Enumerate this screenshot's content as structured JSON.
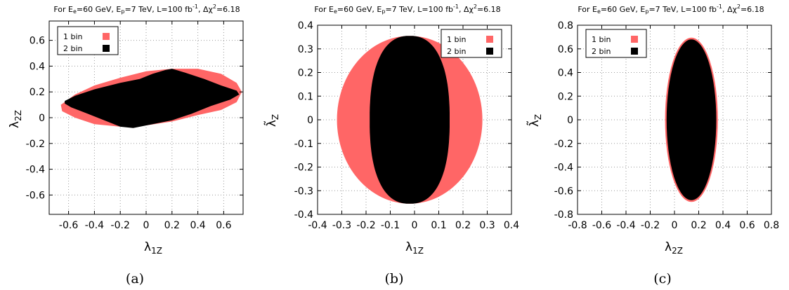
{
  "chart_data": [
    {
      "type": "area",
      "title": "For Eₑ=60 GeV, Eₚ=7 TeV, L=100 fb⁻¹, Δχ²=6.18",
      "xlabel": "λ₁₂",
      "ylabel": "λ₂₂",
      "caption": "(a)",
      "xlim": [
        -0.75,
        0.75
      ],
      "ylim": [
        -0.75,
        0.75
      ],
      "xticks": [
        -0.6,
        -0.4,
        -0.2,
        0,
        0.2,
        0.4,
        0.6
      ],
      "yticks": [
        -0.6,
        -0.4,
        -0.2,
        0,
        0.2,
        0.4,
        0.6
      ],
      "grid": true,
      "legend_position": "top-left",
      "series": [
        {
          "name": "1 bin",
          "color": "#ff6666",
          "points": [
            [
              -0.66,
              0.1
            ],
            [
              -0.55,
              0.18
            ],
            [
              -0.4,
              0.25
            ],
            [
              -0.2,
              0.31
            ],
            [
              0.0,
              0.36
            ],
            [
              0.2,
              0.38
            ],
            [
              0.4,
              0.38
            ],
            [
              0.58,
              0.34
            ],
            [
              0.7,
              0.27
            ],
            [
              0.74,
              0.2
            ],
            [
              0.7,
              0.12
            ],
            [
              0.58,
              0.06
            ],
            [
              0.4,
              0.02
            ],
            [
              0.2,
              -0.03
            ],
            [
              0.0,
              -0.06
            ],
            [
              -0.2,
              -0.07
            ],
            [
              -0.4,
              -0.05
            ],
            [
              -0.55,
              0.0
            ],
            [
              -0.65,
              0.05
            ]
          ]
        },
        {
          "name": "2 bin",
          "color": "#000000",
          "points": [
            [
              -0.63,
              0.13
            ],
            [
              -0.55,
              0.17
            ],
            [
              -0.4,
              0.22
            ],
            [
              -0.2,
              0.27
            ],
            [
              -0.05,
              0.3
            ],
            [
              0.05,
              0.34
            ],
            [
              0.15,
              0.37
            ],
            [
              0.2,
              0.38
            ],
            [
              0.3,
              0.35
            ],
            [
              0.45,
              0.3
            ],
            [
              0.58,
              0.25
            ],
            [
              0.7,
              0.21
            ],
            [
              0.72,
              0.18
            ],
            [
              0.65,
              0.14
            ],
            [
              0.5,
              0.09
            ],
            [
              0.35,
              0.03
            ],
            [
              0.2,
              -0.02
            ],
            [
              0.05,
              -0.05
            ],
            [
              -0.1,
              -0.08
            ],
            [
              -0.2,
              -0.07
            ],
            [
              -0.3,
              -0.03
            ],
            [
              -0.45,
              0.03
            ],
            [
              -0.58,
              0.08
            ],
            [
              -0.63,
              0.11
            ]
          ]
        }
      ]
    },
    {
      "type": "area",
      "title": "For Eₑ=60 GeV, Eₚ=7 TeV, L=100 fb⁻¹, Δχ²=6.18",
      "xlabel": "λ₁₂",
      "ylabel": "λ̃₂",
      "caption": "(b)",
      "xlim": [
        -0.4,
        0.4
      ],
      "ylim": [
        -0.4,
        0.4
      ],
      "xticks": [
        -0.4,
        -0.3,
        -0.2,
        -0.1,
        0,
        0.1,
        0.2,
        0.3,
        0.4
      ],
      "yticks": [
        -0.4,
        -0.3,
        -0.2,
        -0.1,
        0,
        0.1,
        0.2,
        0.3,
        0.4
      ],
      "grid": true,
      "legend_position": "top-right",
      "series": [
        {
          "name": "1 bin",
          "color": "#ff6666",
          "ellipse": {
            "center": [
              -0.02,
              0.0
            ],
            "rx": 0.3,
            "ry": 0.355
          }
        },
        {
          "name": "2 bin",
          "color": "#000000",
          "superellipse": {
            "center": [
              -0.02,
              0.0
            ],
            "rx": 0.165,
            "ry": 0.355,
            "n": 2.4
          }
        }
      ]
    },
    {
      "type": "area",
      "title": "For Eₑ=60 GeV, Eₚ=7 TeV, L=100 fb⁻¹, Δχ²=6.18",
      "xlabel": "λ₂₂",
      "ylabel": "λ̃₂",
      "caption": "(c)",
      "xlim": [
        -0.8,
        0.8
      ],
      "ylim": [
        -0.8,
        0.8
      ],
      "xticks": [
        -0.8,
        -0.6,
        -0.4,
        -0.2,
        0,
        0.2,
        0.4,
        0.6,
        0.8
      ],
      "yticks": [
        -0.8,
        -0.6,
        -0.4,
        -0.2,
        0,
        0.2,
        0.4,
        0.6,
        0.8
      ],
      "grid": true,
      "legend_position": "top-left",
      "series": [
        {
          "name": "1 bin",
          "color": "#ff6666",
          "ellipse": {
            "center": [
              0.14,
              0.0
            ],
            "rx": 0.218,
            "ry": 0.695
          }
        },
        {
          "name": "2 bin",
          "color": "#000000",
          "ellipse": {
            "center": [
              0.14,
              0.0
            ],
            "rx": 0.205,
            "ry": 0.68
          }
        }
      ]
    }
  ]
}
